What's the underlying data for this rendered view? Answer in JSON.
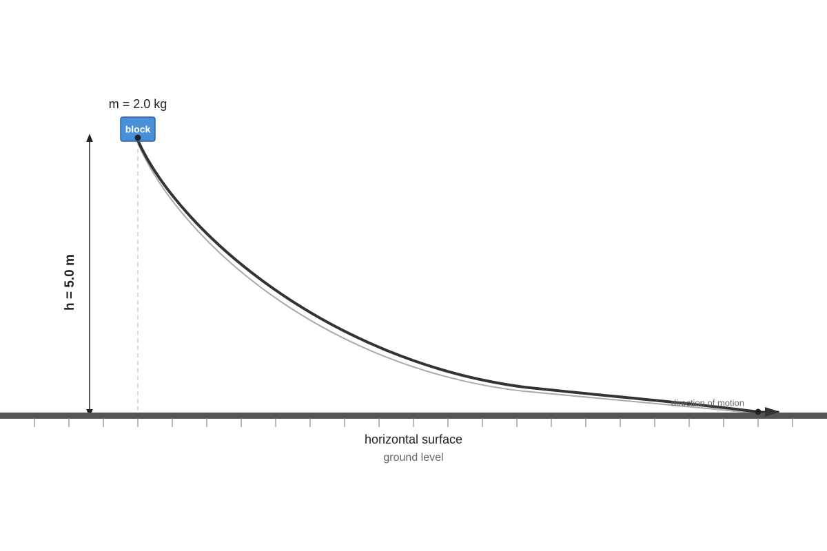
{
  "block": {
    "label": "block",
    "mass": "m = 2.0 kg"
  },
  "height": {
    "label": "h = 5.0 m"
  },
  "surface": {
    "label": "horizontal surface",
    "sublabel": "ground level"
  },
  "motion": {
    "label": "direction of motion"
  }
}
